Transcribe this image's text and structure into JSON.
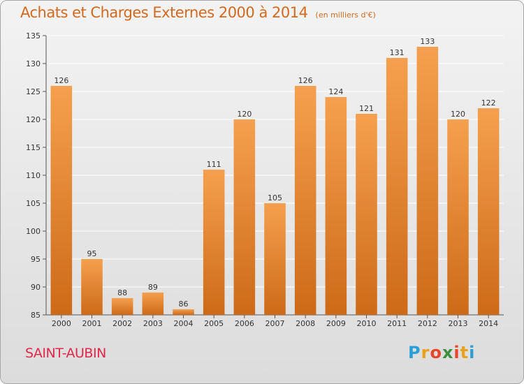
{
  "header": {
    "title": "Achats et Charges Externes 2000 à 2014",
    "subtitle": "(en milliers d'€)"
  },
  "footer": {
    "commune": "SAINT-AUBIN",
    "logo_letters": [
      "P",
      "r",
      "o",
      "x",
      "i",
      "t",
      "i"
    ],
    "logo_colors": [
      "#2a9fd6",
      "#e8a21e",
      "#e8452c",
      "#3d8f3d",
      "#e8452c",
      "#e8a21e",
      "#2a9fd6"
    ]
  },
  "colors": {
    "bar_top": "#f5a04e",
    "bar_bottom": "#cd6a18",
    "grid": "#ffffff",
    "title": "#d2691e",
    "commune": "#e0284a"
  },
  "chart_data": {
    "type": "bar",
    "categories": [
      "2000",
      "2001",
      "2002",
      "2003",
      "2004",
      "2005",
      "2006",
      "2007",
      "2008",
      "2009",
      "2010",
      "2011",
      "2012",
      "2013",
      "2014"
    ],
    "values": [
      126,
      95,
      88,
      89,
      86,
      111,
      120,
      105,
      126,
      124,
      121,
      131,
      133,
      120,
      122
    ],
    "ylim": [
      85,
      135
    ],
    "yticks": [
      85,
      90,
      95,
      100,
      105,
      110,
      115,
      120,
      125,
      130,
      135
    ],
    "grid": true,
    "title": "Achats et Charges Externes 2000 à 2014",
    "subtitle": "(en milliers d'€)"
  }
}
